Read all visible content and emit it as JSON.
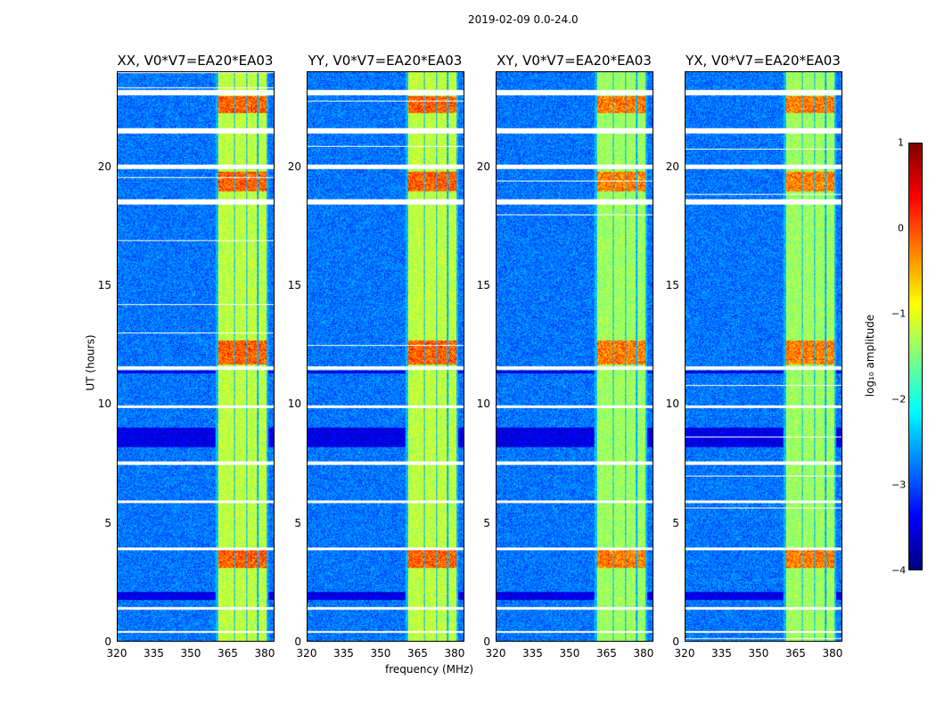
{
  "chart_data": {
    "type": "heatmap",
    "suptitle": "2019-02-09 0.0-24.0",
    "xlabel": "frequency (MHz)",
    "ylabel": "UT (hours)",
    "xlim": [
      320,
      384
    ],
    "ylim": [
      0,
      24
    ],
    "xticks": [
      "320",
      "335",
      "350",
      "365",
      "380"
    ],
    "yticks": [
      "0",
      "5",
      "10",
      "15",
      "20"
    ],
    "panels": [
      {
        "title": "XX, V0*V7=EA20*EA03"
      },
      {
        "title": "YY, V0*V7=EA20*EA03"
      },
      {
        "title": "XY, V0*V7=EA20*EA03"
      },
      {
        "title": "YX, V0*V7=EA20*EA03"
      }
    ],
    "rfi_subbands_mhz": [
      [
        361,
        367.5
      ],
      [
        368,
        372.5
      ],
      [
        373,
        377
      ],
      [
        377.5,
        381
      ]
    ],
    "flagged_hours": [
      [
        23.05,
        23.25
      ],
      [
        21.45,
        21.65
      ],
      [
        19.95,
        20.1
      ],
      [
        18.45,
        18.65
      ],
      [
        11.45,
        11.6
      ],
      [
        9.85,
        9.95
      ],
      [
        7.45,
        7.6
      ],
      [
        5.85,
        5.95
      ],
      [
        3.85,
        3.95
      ],
      [
        1.35,
        1.45
      ],
      [
        0.35,
        0.45
      ]
    ],
    "strong_rfi_hours": [
      [
        22.3,
        23.0
      ],
      [
        19.0,
        19.8
      ],
      [
        11.7,
        12.7
      ],
      [
        3.1,
        3.9
      ]
    ],
    "dark_hours": [
      [
        1.75,
        2.1
      ],
      [
        8.2,
        9.0
      ],
      [
        11.3,
        11.4
      ]
    ],
    "colorbar": {
      "label": "log₁₀ amplitude",
      "range": [
        -4,
        1
      ],
      "ticks": [
        "1",
        "0",
        "−1",
        "−2",
        "−3",
        "−4"
      ]
    }
  }
}
